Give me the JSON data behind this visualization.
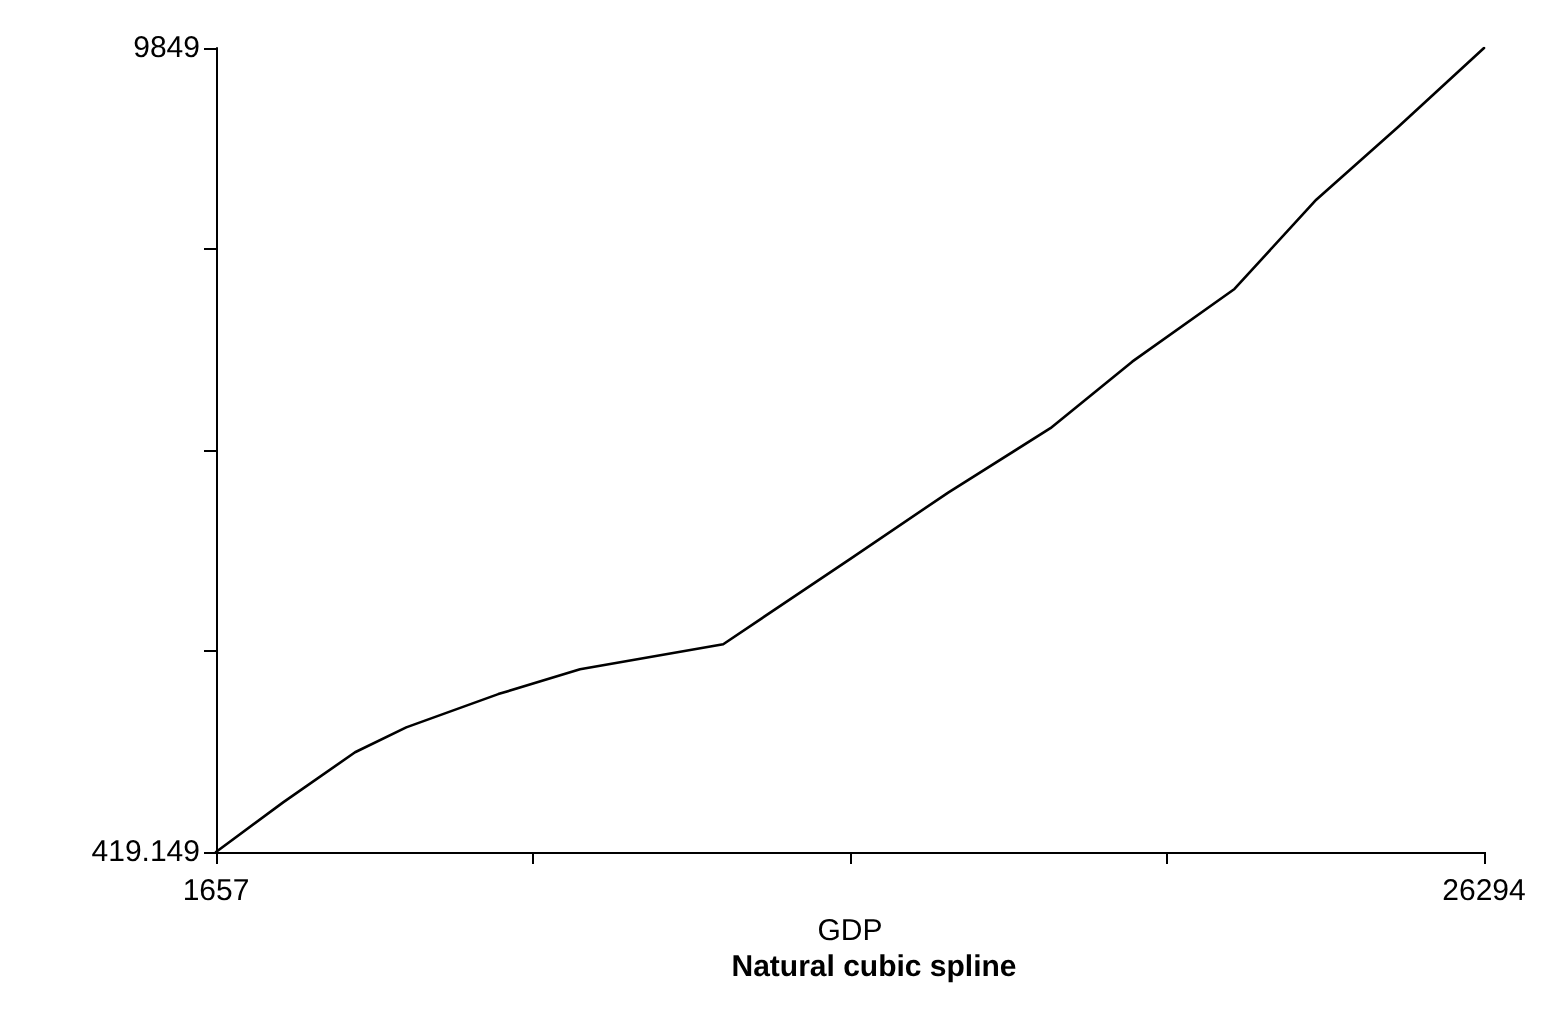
{
  "chart_data": {
    "type": "line",
    "title": "Natural cubic spline",
    "xlabel": "GDP",
    "x": [
      1657,
      2968,
      4359,
      5353,
      7141,
      8730,
      11512,
      13975,
      15883,
      17870,
      19459,
      21446,
      23035,
      24625,
      26294
    ],
    "series": [
      {
        "color": "#000000",
        "values": [
          419.149,
          1004,
          1589,
          1881,
          2271,
          2563,
          2856,
          3855,
          4635,
          5390,
          6170,
          7023,
          8070,
          8923,
          9849
        ]
      }
    ],
    "xlim": [
      1657,
      26294
    ],
    "xticks": [
      1657,
      {
        "value": 7816.25,
        "label": null
      },
      {
        "value": 13975.5,
        "label": null
      },
      {
        "value": 20134.75,
        "label": null
      },
      26294
    ],
    "ylim": [
      419.149,
      9849
    ],
    "yticks": [
      419.149,
      {
        "value": 2776.61,
        "label": null
      },
      {
        "value": 5134.07,
        "label": null
      },
      {
        "value": 7491.54,
        "label": null
      },
      9849
    ],
    "grid": false,
    "marker": "none",
    "line_style": "solid"
  }
}
